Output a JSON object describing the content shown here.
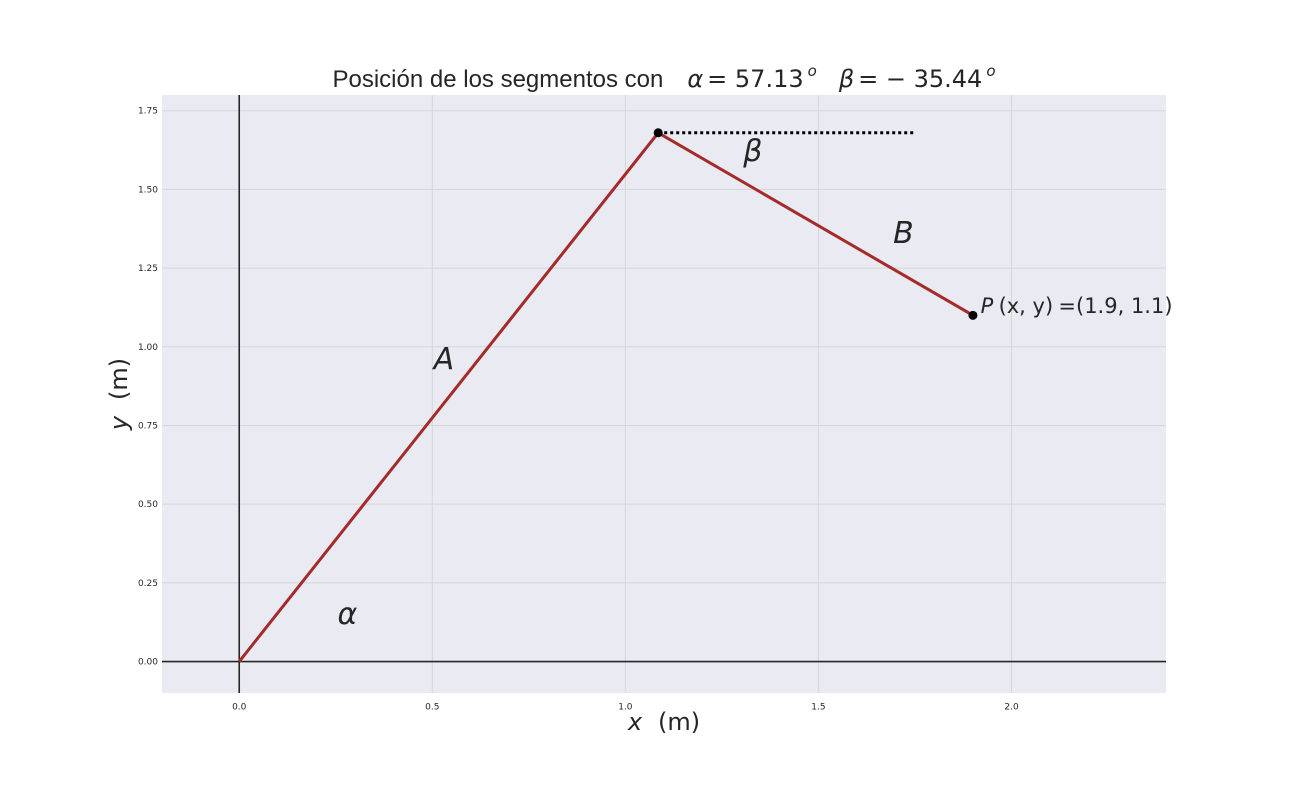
{
  "chart_data": {
    "type": "line",
    "title": {
      "text": "Posición de los segmentos con",
      "alpha_symbol": "α",
      "alpha_value": "= 57.13",
      "beta_symbol": "β",
      "beta_value": "= − 35.44",
      "degree_sup": "o"
    },
    "xlabel": {
      "var": "x",
      "unit": "(m)"
    },
    "ylabel": {
      "var": "y",
      "unit": "(m)"
    },
    "xlim": [
      -0.2,
      2.4
    ],
    "ylim": [
      -0.1,
      1.8
    ],
    "xticks": [
      0.0,
      0.5,
      1.0,
      1.5,
      2.0
    ],
    "xtick_labels": [
      "0.0",
      "0.5",
      "1.0",
      "1.5",
      "2.0"
    ],
    "yticks": [
      0.0,
      0.25,
      0.5,
      0.75,
      1.0,
      1.25,
      1.5,
      1.75
    ],
    "ytick_labels": [
      "0.00",
      "0.25",
      "0.50",
      "0.75",
      "1.00",
      "1.25",
      "1.50",
      "1.75"
    ],
    "grid": true,
    "series": [
      {
        "x": [
          0.0,
          1.085,
          1.9
        ],
        "y": [
          0.0,
          1.68,
          1.1
        ],
        "color": "#a52a2a"
      }
    ],
    "joints": [
      {
        "x": 1.085,
        "y": 1.68
      },
      {
        "x": 1.9,
        "y": 1.1
      }
    ],
    "reference_line": {
      "x": [
        1.085,
        1.75
      ],
      "y": [
        1.68,
        1.68
      ],
      "style": "dotted"
    },
    "axis_lines": {
      "x0": 0.0,
      "y0": 0.0
    },
    "annotations": [
      {
        "text": "A",
        "x": 0.53,
        "y": 0.93,
        "size": "large"
      },
      {
        "text": "B",
        "x": 1.72,
        "y": 1.33,
        "size": "large"
      },
      {
        "text": "α",
        "x": 0.28,
        "y": 0.12,
        "size": "large"
      },
      {
        "text": "β",
        "x": 1.33,
        "y": 1.59,
        "size": "large"
      }
    ],
    "point_label": {
      "name": "P",
      "args": "(x, y)",
      "value": "=(1.9, 1.1)",
      "x": 1.92,
      "y": 1.12
    },
    "colors": {
      "line": "#a52a2a",
      "plot_background": "#eaeaf2",
      "grid": "#d6d6d6",
      "axis": "#262626"
    }
  }
}
